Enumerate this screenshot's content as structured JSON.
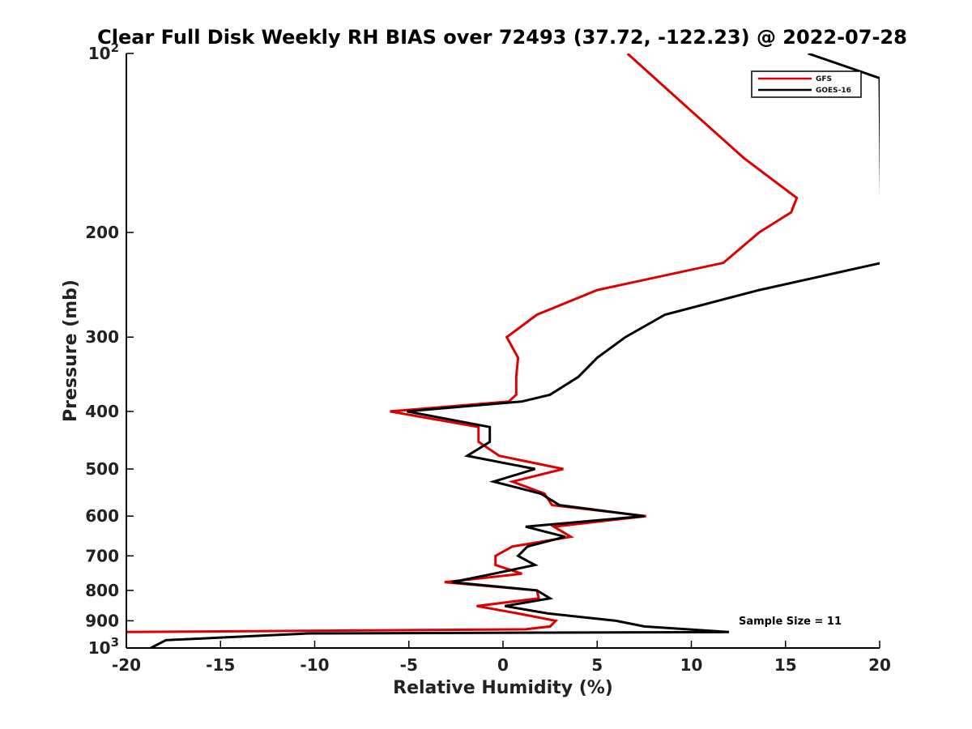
{
  "chart_data": {
    "type": "line",
    "title": "Clear Full Disk Weekly RH BIAS over 72493 (37.72, -122.23) @ 2022-07-28",
    "xlabel": "Relative Humidity (%)",
    "ylabel": "Pressure (mb)",
    "xlim": [
      -20,
      20
    ],
    "ylim": [
      100,
      1000
    ],
    "y_scale": "log",
    "y_reversed": true,
    "grid": false,
    "legend_position": "top-right",
    "x_ticks": [
      "-20",
      "-15",
      "-10",
      "-5",
      "0",
      "5",
      "10",
      "15",
      "20"
    ],
    "y_ticks": [
      {
        "value": 100,
        "base": "10",
        "exp": "2"
      },
      {
        "value": 200,
        "label": "200"
      },
      {
        "value": 300,
        "label": "300"
      },
      {
        "value": 400,
        "label": "400"
      },
      {
        "value": 500,
        "label": "500"
      },
      {
        "value": 600,
        "label": "600"
      },
      {
        "value": 700,
        "label": "700"
      },
      {
        "value": 800,
        "label": "800"
      },
      {
        "value": 900,
        "label": "900"
      },
      {
        "value": 1000,
        "base": "10",
        "exp": "3"
      }
    ],
    "series": [
      {
        "name": "GFS",
        "color": "#dd0000",
        "points": [
          [
            6.6,
            100
          ],
          [
            10.0,
            125
          ],
          [
            12.8,
            150
          ],
          [
            15.6,
            175
          ],
          [
            15.3,
            185
          ],
          [
            13.6,
            200
          ],
          [
            11.7,
            225
          ],
          [
            5.0,
            250
          ],
          [
            1.8,
            275
          ],
          [
            0.2,
            300
          ],
          [
            0.8,
            325
          ],
          [
            0.7,
            350
          ],
          [
            0.7,
            375
          ],
          [
            0.3,
            385
          ],
          [
            -6.0,
            400
          ],
          [
            -1.3,
            425
          ],
          [
            -1.3,
            450
          ],
          [
            -0.2,
            475
          ],
          [
            3.2,
            500
          ],
          [
            0.5,
            525
          ],
          [
            2.2,
            550
          ],
          [
            2.6,
            575
          ],
          [
            7.6,
            600
          ],
          [
            2.7,
            625
          ],
          [
            3.6,
            650
          ],
          [
            0.5,
            675
          ],
          [
            -0.4,
            700
          ],
          [
            -0.4,
            725
          ],
          [
            1.0,
            750
          ],
          [
            -3.1,
            775
          ],
          [
            1.8,
            800
          ],
          [
            1.9,
            825
          ],
          [
            -1.4,
            850
          ],
          [
            0.8,
            875
          ],
          [
            2.8,
            900
          ],
          [
            2.5,
            920
          ],
          [
            1.2,
            930
          ],
          [
            -20.0,
            940
          ]
        ]
      },
      {
        "name": "GOES-16",
        "color": "#000000",
        "points": [
          [
            16.2,
            100
          ],
          [
            20.0,
            110
          ],
          [
            20.1,
            225
          ],
          [
            13.6,
            250
          ],
          [
            8.6,
            275
          ],
          [
            6.5,
            300
          ],
          [
            5.0,
            325
          ],
          [
            4.0,
            350
          ],
          [
            2.5,
            375
          ],
          [
            1.0,
            385
          ],
          [
            -5.1,
            400
          ],
          [
            -0.7,
            425
          ],
          [
            -0.7,
            450
          ],
          [
            -1.9,
            475
          ],
          [
            1.7,
            500
          ],
          [
            -0.5,
            525
          ],
          [
            2.0,
            550
          ],
          [
            3.0,
            575
          ],
          [
            7.5,
            600
          ],
          [
            1.2,
            625
          ],
          [
            3.3,
            650
          ],
          [
            1.3,
            675
          ],
          [
            0.8,
            700
          ],
          [
            1.7,
            725
          ],
          [
            -0.5,
            750
          ],
          [
            -2.7,
            775
          ],
          [
            1.8,
            800
          ],
          [
            2.5,
            825
          ],
          [
            0.1,
            850
          ],
          [
            2.4,
            875
          ],
          [
            6.0,
            900
          ],
          [
            7.5,
            920
          ],
          [
            12.0,
            940
          ],
          [
            -10.3,
            945
          ],
          [
            -17.9,
            970
          ],
          [
            -18.7,
            1000
          ]
        ]
      }
    ],
    "annotation": "Sample Size = 11"
  }
}
